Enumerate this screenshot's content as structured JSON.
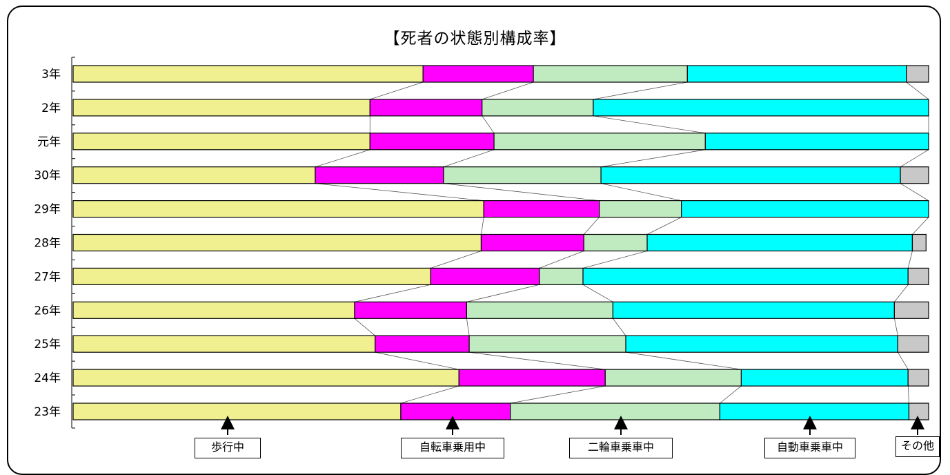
{
  "chart_data": {
    "type": "bar",
    "stacked": "100%",
    "orientation": "horizontal",
    "title": "【死者の状態別構成率】",
    "categories": [
      "3年",
      "2年",
      "元年",
      "30年",
      "29年",
      "28年",
      "27年",
      "26年",
      "25年",
      "24年",
      "23年"
    ],
    "series": [
      {
        "name": "歩行中",
        "color": "#F0F090",
        "values": [
          40.9,
          34.7,
          34.7,
          28.3,
          48.0,
          47.7,
          41.8,
          32.9,
          35.3,
          45.1,
          38.3
        ]
      },
      {
        "name": "自転車乗用中",
        "color": "#FF00FF",
        "values": [
          12.9,
          13.1,
          14.5,
          15.0,
          13.5,
          12.0,
          12.7,
          13.1,
          11.0,
          17.1,
          12.8
        ]
      },
      {
        "name": "二輪車乗車中",
        "color": "#C0EBC0",
        "values": [
          18.0,
          13.0,
          24.7,
          18.4,
          9.6,
          7.4,
          5.1,
          17.1,
          18.3,
          15.9,
          24.5
        ]
      },
      {
        "name": "自動車乗車中",
        "color": "#00FFFF",
        "values": [
          25.6,
          39.2,
          26.1,
          35.0,
          28.9,
          31.0,
          38.0,
          32.9,
          31.8,
          19.5,
          22.1
        ]
      },
      {
        "name": "その他",
        "color": "#C8C8C8",
        "values": [
          2.6,
          0,
          0,
          3.3,
          0,
          1.6,
          2.4,
          4.0,
          3.6,
          2.4,
          2.3
        ]
      }
    ],
    "xlim": [
      0,
      100
    ],
    "legend": "bottom, arrow labels under each segment",
    "grid": false
  }
}
